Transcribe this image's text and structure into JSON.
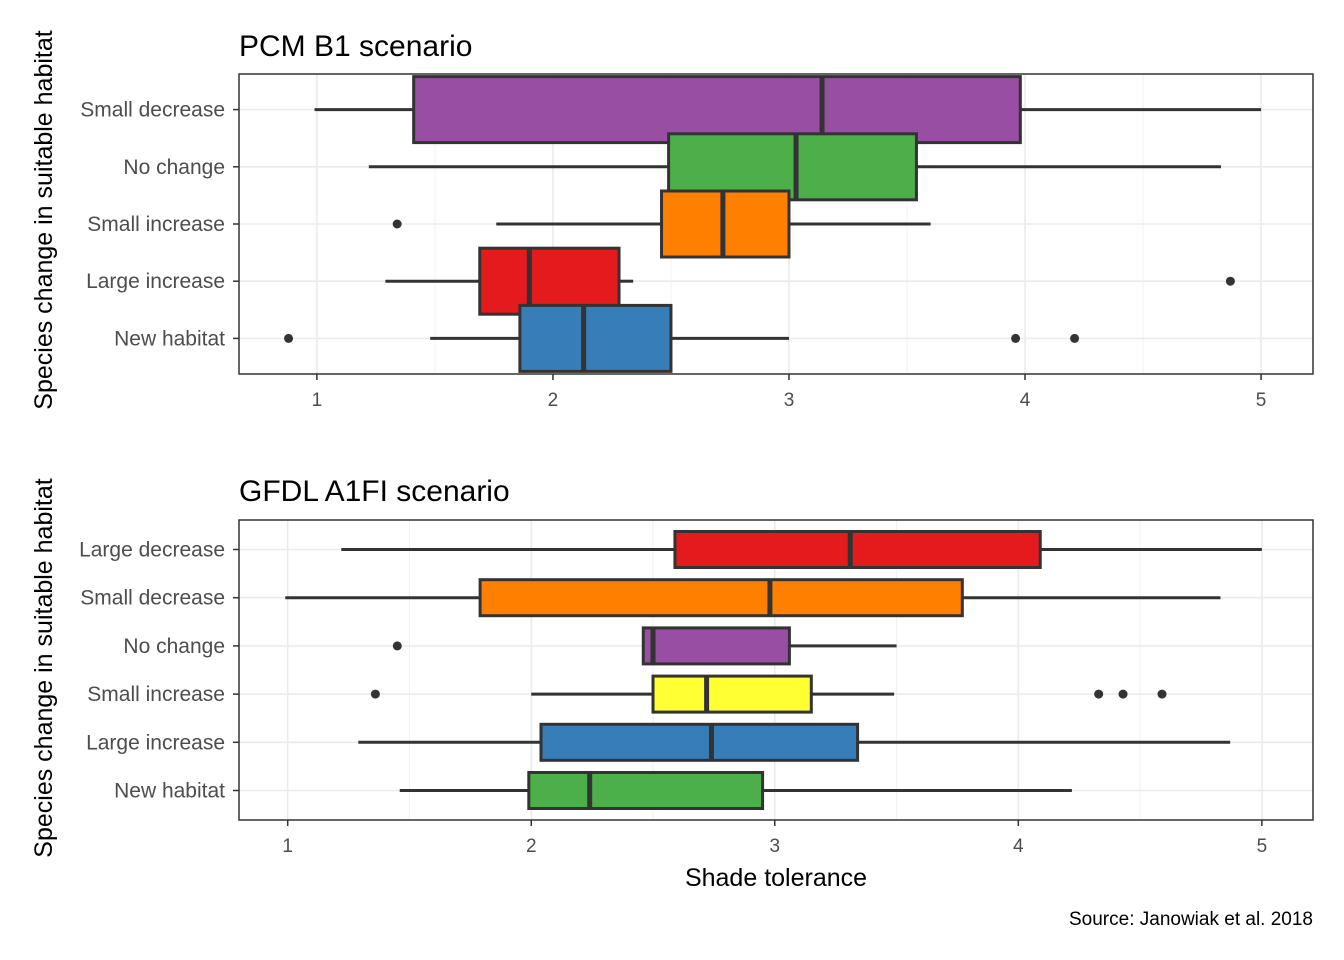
{
  "xlabel": "Shade tolerance",
  "ylabel": "Species change in suitable habitat",
  "caption": "Source: Janowiak et al. 2018",
  "chart_data": [
    {
      "type": "boxplot",
      "title": "PCM B1 scenario",
      "orientation": "horizontal",
      "xlabel": "Shade tolerance",
      "ylabel": "Species change in suitable habitat",
      "xlim": [
        0.67,
        5.22
      ],
      "xticks": [
        "1",
        "2",
        "3",
        "4",
        "5"
      ],
      "grid": true,
      "legend": "none",
      "categories": [
        "Small decrease",
        "No change",
        "Small increase",
        "Large increase",
        "New habitat"
      ],
      "boxes": [
        {
          "category": "Small decrease",
          "color": "#984EA3",
          "whisker_low": 0.99,
          "q1": 1.41,
          "median": 3.14,
          "q3": 3.98,
          "whisker_high": 5.0,
          "outliers": []
        },
        {
          "category": "No change",
          "color": "#4DAF4A",
          "whisker_low": 1.22,
          "q1": 2.49,
          "median": 3.03,
          "q3": 3.54,
          "whisker_high": 4.83,
          "outliers": []
        },
        {
          "category": "Small increase",
          "color": "#FF7F00",
          "whisker_low": 1.76,
          "q1": 2.46,
          "median": 2.72,
          "q3": 3.0,
          "whisker_high": 3.6,
          "outliers": [
            1.34
          ]
        },
        {
          "category": "Large increase",
          "color": "#E41A1C",
          "whisker_low": 1.29,
          "q1": 1.69,
          "median": 1.9,
          "q3": 2.28,
          "whisker_high": 2.34,
          "outliers": [
            4.87
          ]
        },
        {
          "category": "New habitat",
          "color": "#377EB8",
          "whisker_low": 1.48,
          "q1": 1.86,
          "median": 2.13,
          "q3": 2.5,
          "whisker_high": 3.0,
          "outliers": [
            0.88,
            3.96,
            4.21
          ]
        }
      ]
    },
    {
      "type": "boxplot",
      "title": "GFDL A1FI scenario",
      "orientation": "horizontal",
      "xlabel": "Shade tolerance",
      "ylabel": "Species change in suitable habitat",
      "xlim": [
        0.8,
        5.21
      ],
      "xticks": [
        "1",
        "2",
        "3",
        "4",
        "5"
      ],
      "grid": true,
      "legend": "none",
      "categories": [
        "Large decrease",
        "Small decrease",
        "No change",
        "Small increase",
        "Large increase",
        "New habitat"
      ],
      "boxes": [
        {
          "category": "Large decrease",
          "color": "#E41A1C",
          "whisker_low": 1.22,
          "q1": 2.59,
          "median": 3.31,
          "q3": 4.09,
          "whisker_high": 5.0,
          "outliers": []
        },
        {
          "category": "Small decrease",
          "color": "#FF7F00",
          "whisker_low": 0.99,
          "q1": 1.79,
          "median": 2.98,
          "q3": 3.77,
          "whisker_high": 4.83,
          "outliers": []
        },
        {
          "category": "No change",
          "color": "#984EA3",
          "whisker_low": 2.46,
          "q1": 2.46,
          "median": 2.5,
          "q3": 3.06,
          "whisker_high": 3.5,
          "outliers": [
            1.45
          ]
        },
        {
          "category": "Small increase",
          "color": "#FFFF33",
          "whisker_low": 2.0,
          "q1": 2.5,
          "median": 2.72,
          "q3": 3.15,
          "whisker_high": 3.49,
          "outliers": [
            1.36,
            4.33,
            4.43,
            4.59
          ]
        },
        {
          "category": "Large increase",
          "color": "#377EB8",
          "whisker_low": 1.29,
          "q1": 2.04,
          "median": 2.74,
          "q3": 3.34,
          "whisker_high": 4.87,
          "outliers": []
        },
        {
          "category": "New habitat",
          "color": "#4DAF4A",
          "whisker_low": 1.46,
          "q1": 1.99,
          "median": 2.24,
          "q3": 2.95,
          "whisker_high": 4.22,
          "outliers": []
        }
      ]
    }
  ]
}
